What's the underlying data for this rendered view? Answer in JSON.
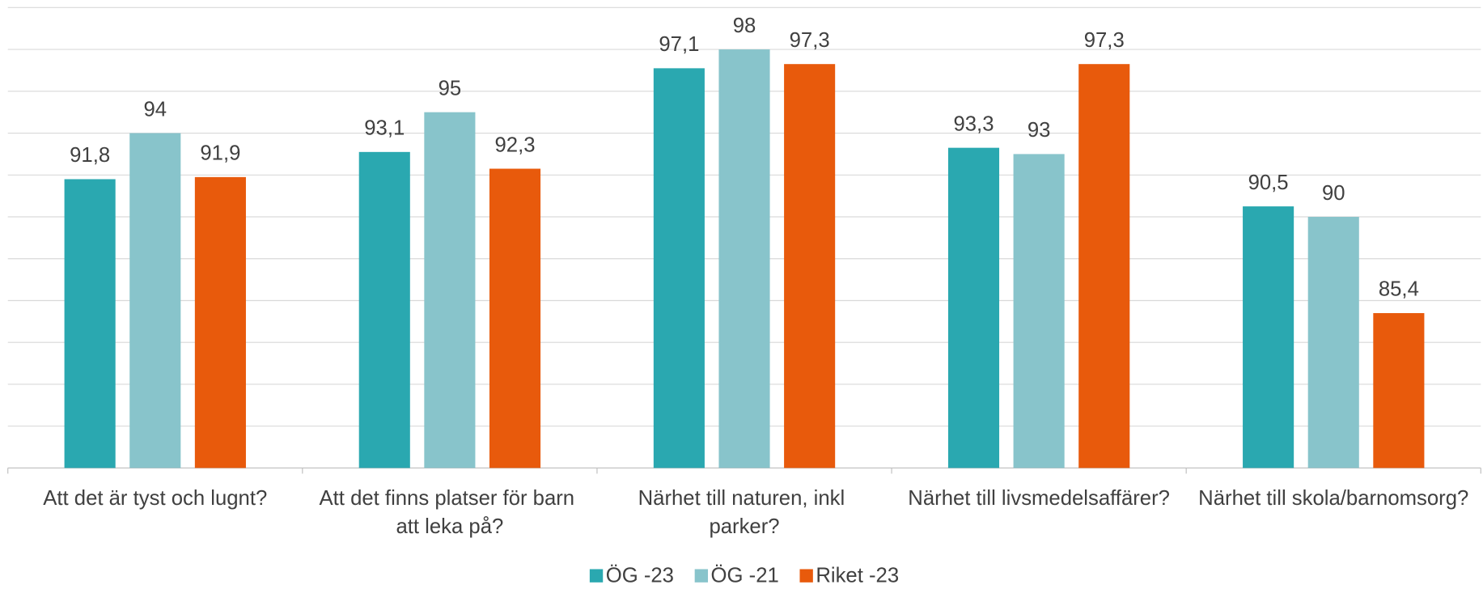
{
  "chart_data": {
    "type": "bar",
    "categories": [
      "Att det är tyst och lugnt?",
      "Att det finns platser för barn att leka på?",
      "Närhet till naturen, inkl parker?",
      "Närhet till livsmedelsaffärer?",
      "Närhet till skola/barnomsorg?"
    ],
    "series": [
      {
        "name": "ÖG -23",
        "color": "#2aa8b0",
        "values": [
          91.8,
          93.1,
          97.1,
          93.3,
          90.5
        ],
        "value_labels": [
          "91,8",
          "93,1",
          "97,1",
          "93,3",
          "90,5"
        ]
      },
      {
        "name": "ÖG -21",
        "color": "#88c4cb",
        "values": [
          94,
          95,
          98,
          93,
          90
        ],
        "value_labels": [
          "94",
          "95",
          "98",
          "93",
          "90"
        ]
      },
      {
        "name": "Riket -23",
        "color": "#e85a0c",
        "values": [
          91.9,
          92.3,
          97.3,
          97.3,
          85.4
        ],
        "value_labels": [
          "91,9",
          "92,3",
          "97,3",
          "97,3",
          "85,4"
        ]
      }
    ],
    "ylim": [
      78,
      100
    ],
    "yticks": [
      78,
      80,
      82,
      84,
      86,
      88,
      90,
      92,
      94,
      96,
      98,
      100
    ],
    "grid": true,
    "legend": "bottom"
  }
}
